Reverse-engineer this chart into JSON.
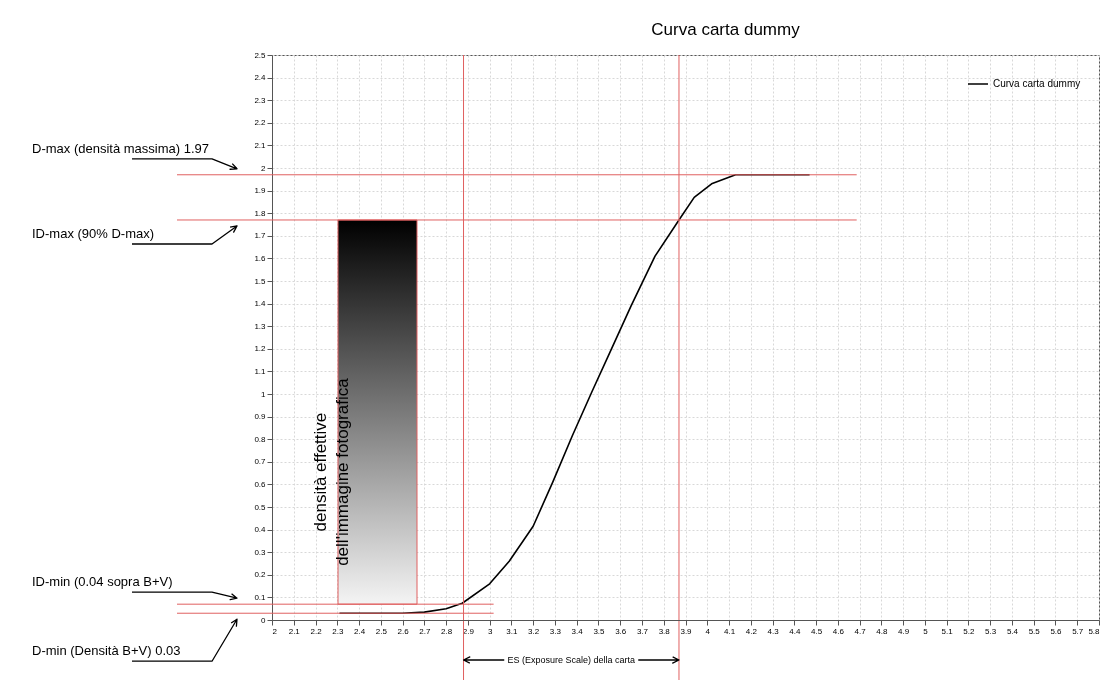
{
  "chart_data": {
    "type": "line",
    "title": "Curva carta dummy",
    "x": [
      2.31,
      2.6,
      2.7,
      2.8,
      2.874,
      3.0,
      3.09,
      3.2,
      3.29,
      3.38,
      3.47,
      3.56,
      3.65,
      3.76,
      3.87,
      3.94,
      4.02,
      4.13,
      4.2,
      4.47
    ],
    "series": [
      {
        "name": "Curva carta dummy",
        "color": "#000000",
        "values": [
          0.03,
          0.03,
          0.035,
          0.05,
          0.074,
          0.16,
          0.26,
          0.415,
          0.61,
          0.815,
          1.01,
          1.2,
          1.39,
          1.61,
          1.77,
          1.87,
          1.93,
          1.97,
          1.97,
          1.97
        ]
      }
    ],
    "xlim": [
      2,
      5.8
    ],
    "ylim": [
      0,
      2.5
    ],
    "xticks": [
      2,
      2.1,
      2.2,
      2.3,
      2.4,
      2.5,
      2.6,
      2.7,
      2.8,
      2.9,
      3,
      3.1,
      3.2,
      3.3,
      3.4,
      3.5,
      3.6,
      3.7,
      3.8,
      3.9,
      4,
      4.1,
      4.2,
      4.3,
      4.4,
      4.5,
      4.6,
      4.7,
      4.8,
      4.9,
      5,
      5.1,
      5.2,
      5.3,
      5.4,
      5.5,
      5.6,
      5.7,
      5.8
    ],
    "yticks": [
      0,
      0.1,
      0.2,
      0.3,
      0.4,
      0.5,
      0.6,
      0.7,
      0.8,
      0.9,
      1,
      1.1,
      1.2,
      1.3,
      1.4,
      1.5,
      1.6,
      1.7,
      1.8,
      1.9,
      2,
      2.1,
      2.2,
      2.3,
      2.4,
      2.5
    ],
    "grid": true,
    "legend": "top right",
    "ref_lines": [
      {
        "axis": "y",
        "value": 1.97,
        "label": "D-max (densità massima) 1.97",
        "color": "#e06060"
      },
      {
        "axis": "y",
        "value": 1.77,
        "label": "ID-max (90% D-max)",
        "color": "#e06060"
      },
      {
        "axis": "y",
        "value": 0.07,
        "label": "ID-min (0.04 sopra B+V)",
        "color": "#e06060"
      },
      {
        "axis": "y",
        "value": 0.03,
        "label": "D-min (Densità B+V) 0.03",
        "color": "#e06060"
      },
      {
        "axis": "x",
        "value": 2.88,
        "label": null,
        "color": "#e06060"
      },
      {
        "axis": "x",
        "value": 3.87,
        "label": null,
        "color": "#e06060"
      }
    ],
    "bands": [
      {
        "axis": "y",
        "from": 0.07,
        "to": 1.77,
        "label": "densità effettive\ndell'immagine fotografica",
        "color": "#e06060"
      }
    ],
    "annotations": [
      "ES (Exposure Scale) della carta"
    ]
  }
}
